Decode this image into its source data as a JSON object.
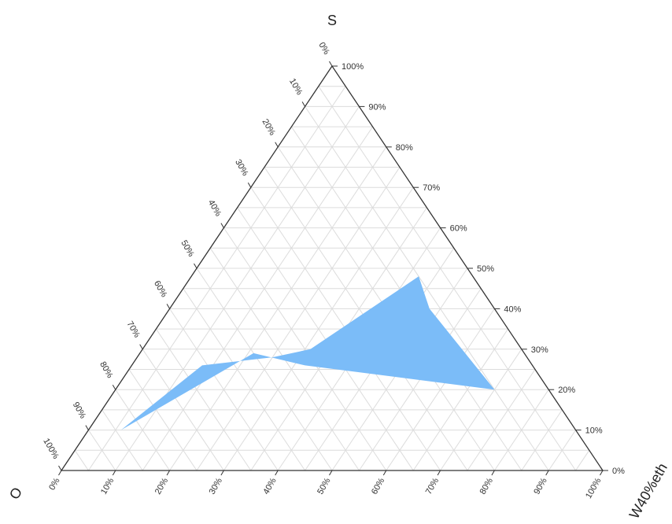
{
  "chart_data": {
    "type": "ternary-area",
    "axes": {
      "a": {
        "title": "S",
        "ticks": [
          "0%",
          "10%",
          "20%",
          "30%",
          "40%",
          "50%",
          "60%",
          "70%",
          "80%",
          "90%",
          "100%"
        ]
      },
      "b": {
        "title": "O",
        "ticks": [
          "0%",
          "10%",
          "20%",
          "30%",
          "40%",
          "50%",
          "60%",
          "70%",
          "80%",
          "90%",
          "100%"
        ]
      },
      "c": {
        "title": "W40%eth",
        "ticks": [
          "0%",
          "10%",
          "20%",
          "30%",
          "40%",
          "50%",
          "60%",
          "70%",
          "80%",
          "90%",
          "100%"
        ]
      }
    },
    "grid": true,
    "grid_step": 0.05,
    "series": [
      {
        "fill": "#7bbcf8",
        "points": [
          {
            "a": 0.1,
            "b": 0.84,
            "c": 0.06
          },
          {
            "a": 0.26,
            "b": 0.61,
            "c": 0.13
          },
          {
            "a": 0.28,
            "b": 0.47,
            "c": 0.25
          },
          {
            "a": 0.3,
            "b": 0.39,
            "c": 0.31
          },
          {
            "a": 0.48,
            "b": 0.1,
            "c": 0.42
          },
          {
            "a": 0.4,
            "b": 0.12,
            "c": 0.48
          },
          {
            "a": 0.2,
            "b": 0.1,
            "c": 0.7
          },
          {
            "a": 0.26,
            "b": 0.42,
            "c": 0.32
          },
          {
            "a": 0.29,
            "b": 0.5,
            "c": 0.21
          }
        ]
      }
    ]
  }
}
